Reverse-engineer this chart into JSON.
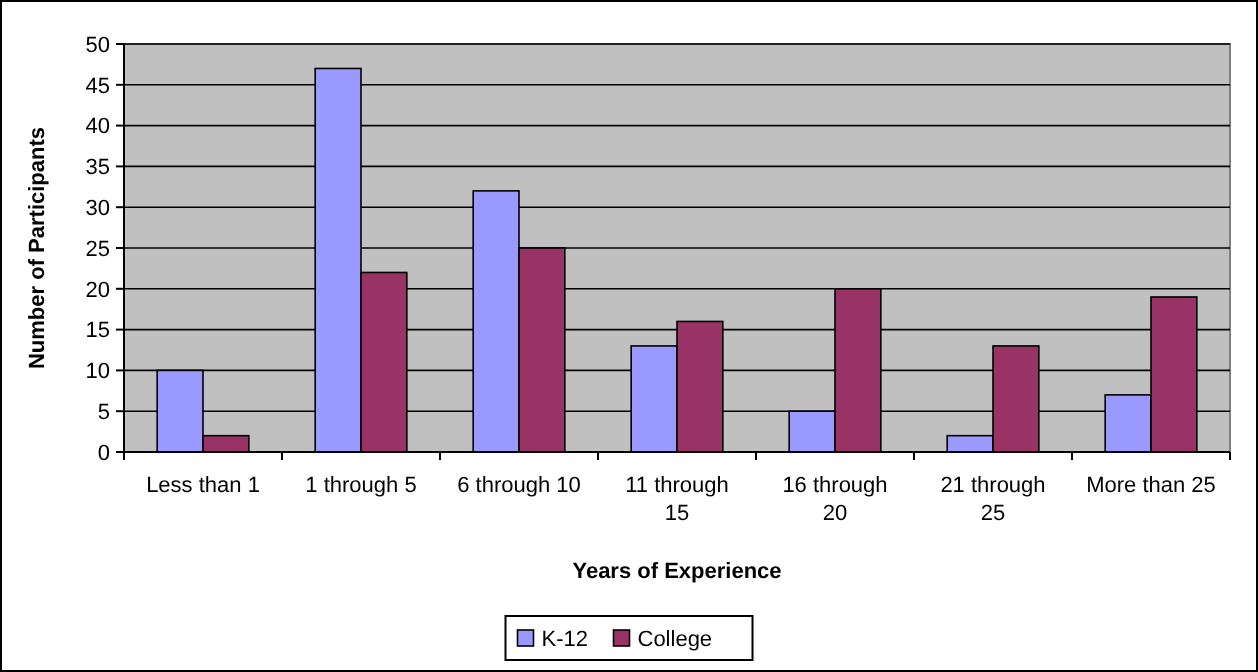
{
  "chart_data": {
    "type": "bar",
    "xlabel": "Years of Experience",
    "ylabel": "Number of Participants",
    "categories": [
      "Less than 1",
      "1 through 5",
      "6 through 10",
      "11 through 15",
      "16 through 20",
      "21 through 25",
      "More than 25"
    ],
    "series": [
      {
        "name": "K-12",
        "color": "#9999ff",
        "values": [
          10,
          47,
          32,
          13,
          5,
          2,
          7
        ]
      },
      {
        "name": "College",
        "color": "#993366",
        "values": [
          2,
          22,
          25,
          16,
          20,
          13,
          19
        ]
      }
    ],
    "ylim": [
      0,
      50
    ],
    "yticks": [
      0,
      5,
      10,
      15,
      20,
      25,
      30,
      35,
      40,
      45,
      50
    ],
    "grid": "y",
    "legend": "bottom"
  }
}
